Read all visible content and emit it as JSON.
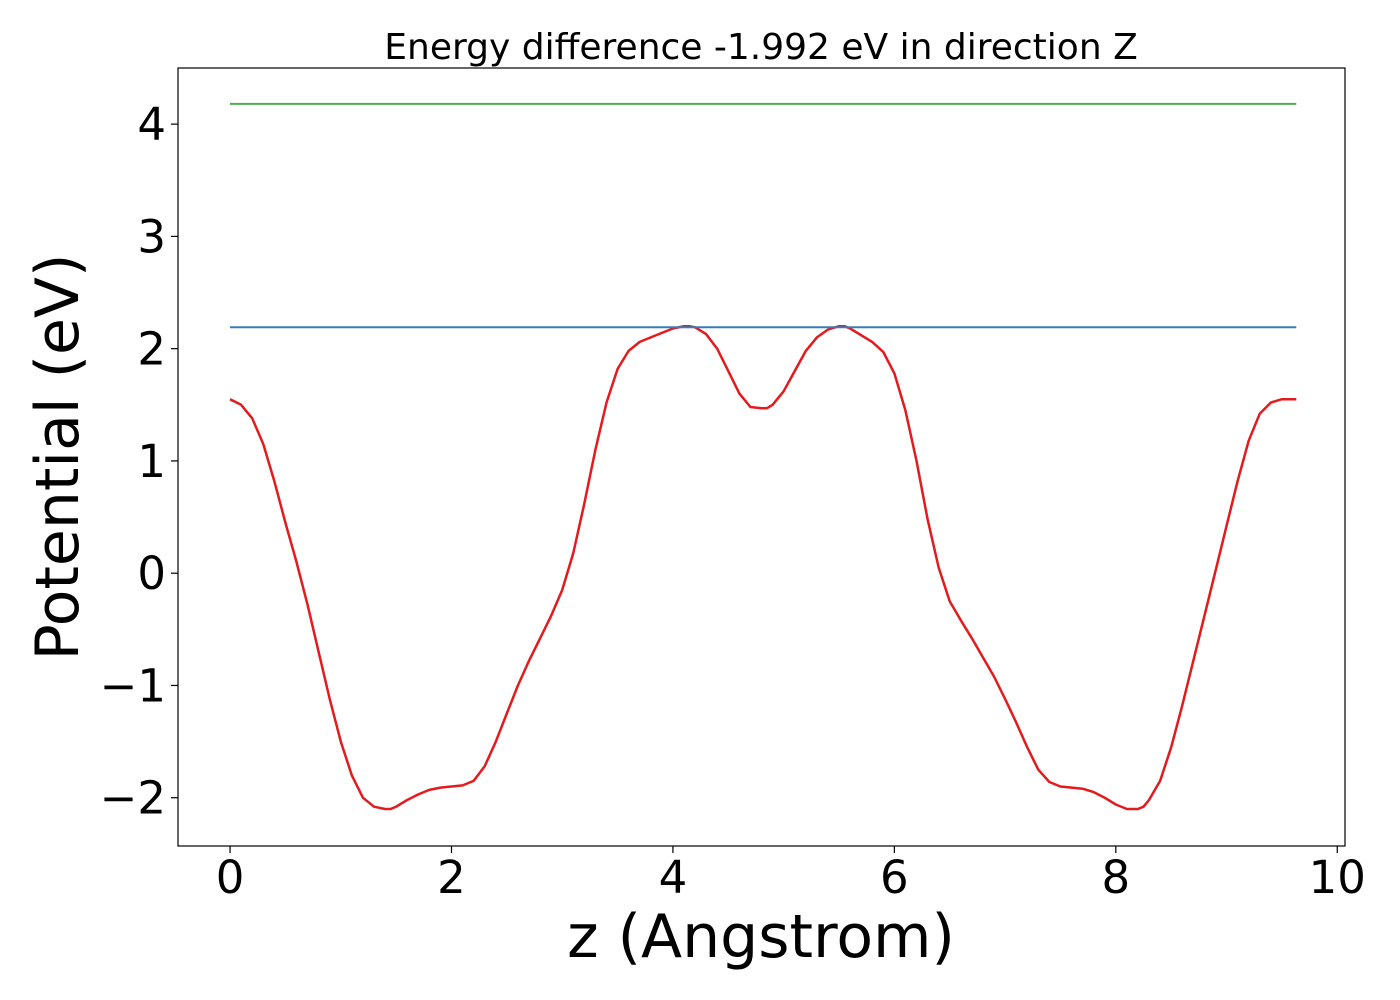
{
  "chart_data": {
    "type": "line",
    "title": "Energy difference -1.992 eV in direction Z",
    "xlabel": "z (Angstrom)",
    "ylabel": "Potential (eV)",
    "xlim": [
      -0.47,
      10.07
    ],
    "ylim": [
      -2.43,
      4.5
    ],
    "x_ticks": [
      0,
      2,
      4,
      6,
      8,
      10
    ],
    "x_tick_labels": [
      "0",
      "2",
      "4",
      "6",
      "8",
      "10"
    ],
    "y_ticks": [
      -2,
      -1,
      0,
      1,
      2,
      3,
      4
    ],
    "y_tick_labels": [
      "−2",
      "−1",
      "0",
      "1",
      "2",
      "3",
      "4"
    ],
    "grid": false,
    "series": [
      {
        "color": "#e41a1c",
        "x": [
          0,
          0.1,
          0.2,
          0.3,
          0.4,
          0.5,
          0.6,
          0.7,
          0.8,
          0.9,
          1.0,
          1.1,
          1.2,
          1.3,
          1.4,
          1.45,
          1.5,
          1.6,
          1.7,
          1.8,
          1.9,
          2.0,
          2.1,
          2.2,
          2.3,
          2.4,
          2.5,
          2.6,
          2.7,
          2.8,
          2.9,
          3.0,
          3.1,
          3.2,
          3.3,
          3.4,
          3.5,
          3.6,
          3.7,
          3.8,
          3.9,
          4.0,
          4.1,
          4.15,
          4.2,
          4.3,
          4.4,
          4.5,
          4.6,
          4.7,
          4.8,
          4.85,
          4.9,
          5.0,
          5.1,
          5.2,
          5.3,
          5.4,
          5.5,
          5.55,
          5.6,
          5.7,
          5.8,
          5.9,
          6.0,
          6.1,
          6.2,
          6.3,
          6.4,
          6.5,
          6.6,
          6.7,
          6.8,
          6.9,
          7.0,
          7.1,
          7.2,
          7.3,
          7.4,
          7.5,
          7.6,
          7.7,
          7.8,
          7.9,
          8.0,
          8.1,
          8.2,
          8.25,
          8.3,
          8.4,
          8.5,
          8.6,
          8.7,
          8.8,
          8.9,
          9.0,
          9.1,
          9.2,
          9.3,
          9.4,
          9.5,
          9.6,
          9.63
        ],
        "y": [
          1.55,
          1.5,
          1.38,
          1.15,
          0.82,
          0.45,
          0.1,
          -0.28,
          -0.7,
          -1.12,
          -1.5,
          -1.8,
          -2.0,
          -2.08,
          -2.1,
          -2.1,
          -2.08,
          -2.02,
          -1.97,
          -1.93,
          -1.91,
          -1.9,
          -1.89,
          -1.85,
          -1.72,
          -1.5,
          -1.25,
          -1.0,
          -0.78,
          -0.58,
          -0.38,
          -0.15,
          0.18,
          0.62,
          1.1,
          1.52,
          1.82,
          1.98,
          2.06,
          2.1,
          2.14,
          2.18,
          2.2,
          2.2,
          2.19,
          2.13,
          2.0,
          1.8,
          1.6,
          1.48,
          1.47,
          1.47,
          1.5,
          1.62,
          1.8,
          1.98,
          2.1,
          2.17,
          2.2,
          2.2,
          2.18,
          2.12,
          2.06,
          1.97,
          1.78,
          1.45,
          1.0,
          0.48,
          0.05,
          -0.25,
          -0.42,
          -0.58,
          -0.75,
          -0.92,
          -1.12,
          -1.33,
          -1.55,
          -1.75,
          -1.86,
          -1.9,
          -1.91,
          -1.92,
          -1.95,
          -2.0,
          -2.06,
          -2.1,
          -2.1,
          -2.08,
          -2.02,
          -1.85,
          -1.55,
          -1.18,
          -0.78,
          -0.38,
          0.02,
          0.42,
          0.82,
          1.18,
          1.42,
          1.52,
          1.55,
          1.55,
          1.55
        ]
      },
      {
        "color": "#377eb8",
        "x": [
          0,
          9.63
        ],
        "y": [
          2.19,
          2.19
        ]
      },
      {
        "color": "#4daf4a",
        "x": [
          0,
          9.63
        ],
        "y": [
          4.18,
          4.18
        ]
      }
    ]
  }
}
